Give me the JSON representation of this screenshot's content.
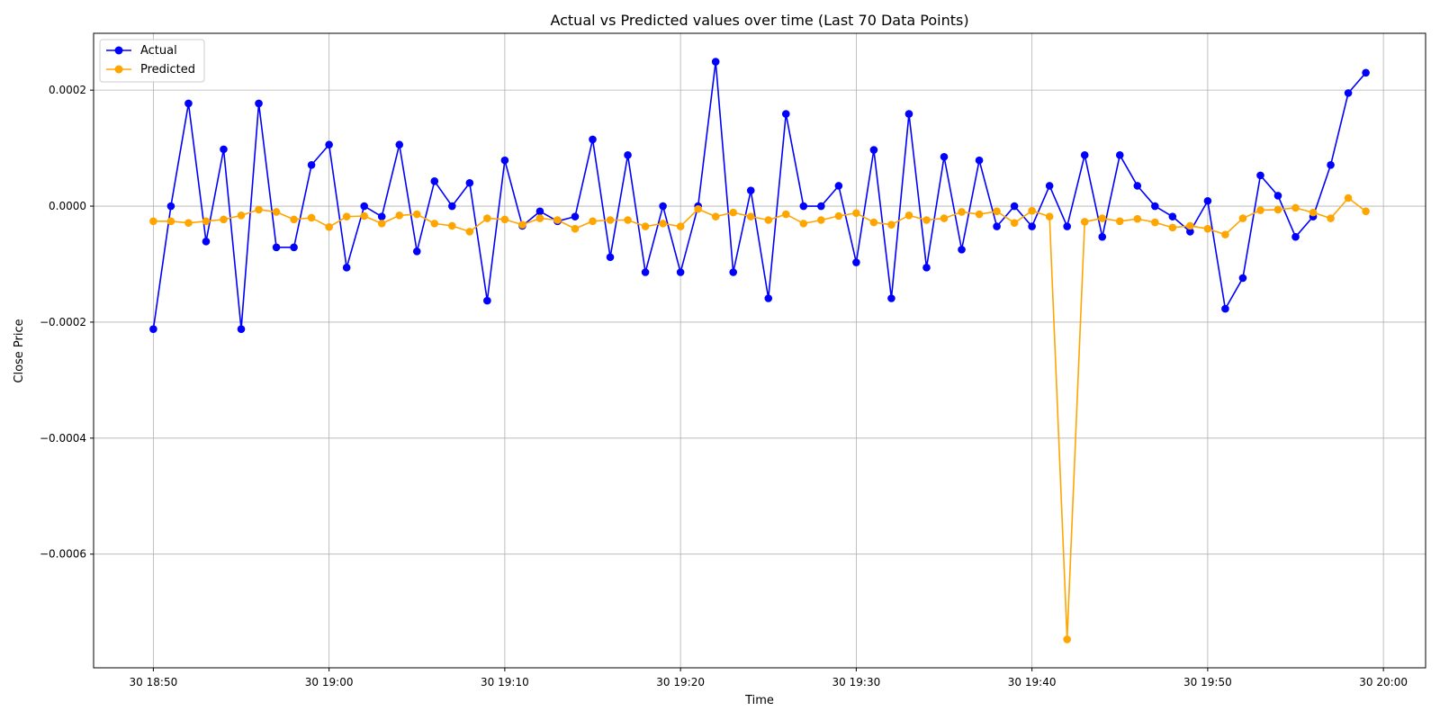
{
  "chart_data": {
    "type": "line",
    "title": "Actual vs Predicted values over time (Last 70 Data Points)",
    "xlabel": "Time",
    "ylabel": "Close Price",
    "x_tick_labels": [
      "30 18:50",
      "30 19:00",
      "30 19:10",
      "30 19:20",
      "30 19:30",
      "30 19:40",
      "30 19:50",
      "30 20:00"
    ],
    "y_tick_labels": [
      "−0.0006",
      "−0.0004",
      "−0.0002",
      "0.0000",
      "0.0002"
    ],
    "x_range_minutes": [
      -3.4,
      72.4
    ],
    "ylim": [
      -0.000796,
      0.000298
    ],
    "grid": true,
    "legend_position": "upper-left",
    "x_start": "30 18:50",
    "x_step_minutes": 1,
    "series": [
      {
        "name": "Actual",
        "color": "#0000ff",
        "marker": "circle",
        "values": [
          -0.000212,
          0.0,
          0.000177,
          -6.1e-05,
          9.8e-05,
          -0.000212,
          0.000177,
          -7.1e-05,
          -7.1e-05,
          7.1e-05,
          0.000106,
          -0.000106,
          0.0,
          -1.8e-05,
          0.000106,
          -7.8e-05,
          4.3e-05,
          0.0,
          4e-05,
          -0.000163,
          7.9e-05,
          -3.4e-05,
          -9e-06,
          -2.6e-05,
          -1.8e-05,
          0.000115,
          -8.8e-05,
          8.8e-05,
          -0.000114,
          0.0,
          -0.000114,
          0.0,
          0.000249,
          -0.000114,
          2.7e-05,
          -0.000159,
          0.000159,
          0.0,
          0.0,
          3.5e-05,
          -9.7e-05,
          9.7e-05,
          -0.000159,
          0.000159,
          -0.000106,
          8.5e-05,
          -7.5e-05,
          7.9e-05,
          -3.5e-05,
          0.0,
          -3.5e-05,
          3.5e-05,
          -3.5e-05,
          8.8e-05,
          -5.3e-05,
          8.8e-05,
          3.5e-05,
          0.0,
          -1.8e-05,
          -4.4e-05,
          9e-06,
          -0.000177,
          -0.000124,
          5.3e-05,
          1.8e-05,
          -5.3e-05,
          -1.8e-05,
          7.1e-05,
          0.000195,
          0.00023
        ]
      },
      {
        "name": "Predicted",
        "color": "#ffa500",
        "marker": "circle",
        "values": [
          -2.6e-05,
          -2.6e-05,
          -2.9e-05,
          -2.6e-05,
          -2.3e-05,
          -1.6e-05,
          -6e-06,
          -1e-05,
          -2.3e-05,
          -2e-05,
          -3.6e-05,
          -1.8e-05,
          -1.7e-05,
          -3e-05,
          -1.6e-05,
          -1.4e-05,
          -3e-05,
          -3.4e-05,
          -4.4e-05,
          -2.1e-05,
          -2.3e-05,
          -3.2e-05,
          -2.1e-05,
          -2.4e-05,
          -3.9e-05,
          -2.6e-05,
          -2.4e-05,
          -2.4e-05,
          -3.5e-05,
          -3e-05,
          -3.5e-05,
          -5e-06,
          -1.8e-05,
          -1.1e-05,
          -1.8e-05,
          -2.4e-05,
          -1.4e-05,
          -3e-05,
          -2.4e-05,
          -1.7e-05,
          -1.2e-05,
          -2.8e-05,
          -3.2e-05,
          -1.6e-05,
          -2.4e-05,
          -2.1e-05,
          -1e-05,
          -1.4e-05,
          -9e-06,
          -2.9e-05,
          -8e-06,
          -1.8e-05,
          -0.000747,
          -2.7e-05,
          -2.1e-05,
          -2.6e-05,
          -2.2e-05,
          -2.8e-05,
          -3.7e-05,
          -3.4e-05,
          -3.9e-05,
          -4.9e-05,
          -2.1e-05,
          -7e-06,
          -6e-06,
          -3e-06,
          -1.1e-05,
          -2.1e-05,
          1.4e-05,
          -9e-06
        ]
      }
    ]
  }
}
